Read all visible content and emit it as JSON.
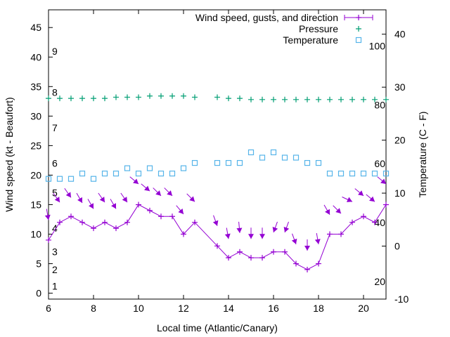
{
  "chart_data": {
    "type": "line",
    "xlabel": "Local time (Atlantic/Canary)",
    "ylabel": "Wind speed (kt - Beaufort)",
    "y2label": "Temperature (C - F)",
    "xlim": [
      6,
      21
    ],
    "ylim": [
      -1,
      48
    ],
    "y2lim": [
      -10,
      44.6
    ],
    "grid": false,
    "legend_position": "top-right",
    "x_ticks": [
      6,
      8,
      10,
      12,
      14,
      16,
      18,
      20
    ],
    "y_ticks": [
      0,
      5,
      10,
      15,
      20,
      25,
      30,
      35,
      40,
      45
    ],
    "y2_ticks": [
      -10,
      0,
      10,
      20,
      30,
      40
    ],
    "beaufort_labels": [
      {
        "label": "1",
        "kt": 1.2
      },
      {
        "label": "2",
        "kt": 4
      },
      {
        "label": "3",
        "kt": 7
      },
      {
        "label": "4",
        "kt": 11
      },
      {
        "label": "5",
        "kt": 17
      },
      {
        "label": "6",
        "kt": 22
      },
      {
        "label": "7",
        "kt": 28
      },
      {
        "label": "8",
        "kt": 34
      },
      {
        "label": "9",
        "kt": 41
      }
    ],
    "fahrenheit_labels": [
      {
        "label": "20",
        "f": 20
      },
      {
        "label": "40",
        "f": 40
      },
      {
        "label": "60",
        "f": 60
      },
      {
        "label": "80",
        "f": 80
      },
      {
        "label": "100",
        "f": 100
      }
    ],
    "colors": {
      "wind": "#9400d3",
      "pressure": "#009e73",
      "temperature": "#56b4e9"
    },
    "series": [
      {
        "name": "Wind speed, gusts, and direction",
        "x": [
          6,
          6.5,
          7,
          7.5,
          8,
          8.5,
          9,
          9.5,
          10,
          10.5,
          11,
          11.5,
          12,
          12.5,
          13.5,
          14,
          14.5,
          15,
          15.5,
          16,
          16.5,
          17,
          17.5,
          18,
          18.5,
          19,
          19.5,
          20,
          20.5,
          21
        ],
        "speed": [
          9,
          12,
          13,
          12,
          11,
          12,
          11,
          12,
          15,
          14,
          13,
          13,
          10,
          12,
          8,
          6,
          7,
          6,
          6,
          7,
          7,
          5,
          4,
          5,
          10,
          10,
          12,
          13,
          12,
          15
        ],
        "gust": [
          12.4,
          15.4,
          16.2,
          15.3,
          14.3,
          15.4,
          14.3,
          15.4,
          18.5,
          17.3,
          16.5,
          16.5,
          13.4,
          15.5,
          11.4,
          9.2,
          10.2,
          9.2,
          9.2,
          10.3,
          10.3,
          8.3,
          7.2,
          8.3,
          13.3,
          13.5,
          15.5,
          16.5,
          15.5,
          18.5
        ],
        "direction_deg": [
          350,
          325,
          325,
          330,
          330,
          325,
          330,
          325,
          310,
          310,
          315,
          315,
          320,
          315,
          340,
          350,
          355,
          0,
          0,
          20,
          20,
          340,
          0,
          350,
          330,
          315,
          295,
          310,
          310,
          310
        ]
      },
      {
        "name": "Pressure",
        "x": [
          6,
          6.5,
          7,
          7.5,
          8,
          8.5,
          9,
          9.5,
          10,
          10.5,
          11,
          11.5,
          12,
          12.5,
          13.5,
          14,
          14.5,
          15,
          15.5,
          16,
          16.5,
          17,
          17.5,
          18,
          18.5,
          19,
          19.5,
          20,
          20.5,
          21
        ],
        "values": [
          33.0,
          33.0,
          33.0,
          33.0,
          33.0,
          33.0,
          33.2,
          33.2,
          33.2,
          33.4,
          33.4,
          33.4,
          33.4,
          33.2,
          33.2,
          33.0,
          33.0,
          32.8,
          32.8,
          32.8,
          32.8,
          32.8,
          32.8,
          32.8,
          32.8,
          32.8,
          32.8,
          32.8,
          32.8,
          32.8
        ]
      },
      {
        "name": "Temperature",
        "axis": "y2",
        "x": [
          6,
          6.5,
          7,
          7.5,
          8,
          8.5,
          9,
          9.5,
          10,
          10.5,
          11,
          11.5,
          12,
          12.5,
          13.5,
          14,
          14.5,
          15,
          15.5,
          16,
          16.5,
          17,
          17.5,
          18,
          18.5,
          19,
          19.5,
          20,
          20.5,
          21
        ],
        "values": [
          12.7,
          12.7,
          12.7,
          13.7,
          12.7,
          13.7,
          13.7,
          14.7,
          13.7,
          14.7,
          13.7,
          13.7,
          14.7,
          15.7,
          15.7,
          15.7,
          15.7,
          17.7,
          16.7,
          17.7,
          16.7,
          16.7,
          15.7,
          15.7,
          13.7,
          13.7,
          13.7,
          13.7,
          13.7,
          13.7
        ]
      }
    ]
  }
}
